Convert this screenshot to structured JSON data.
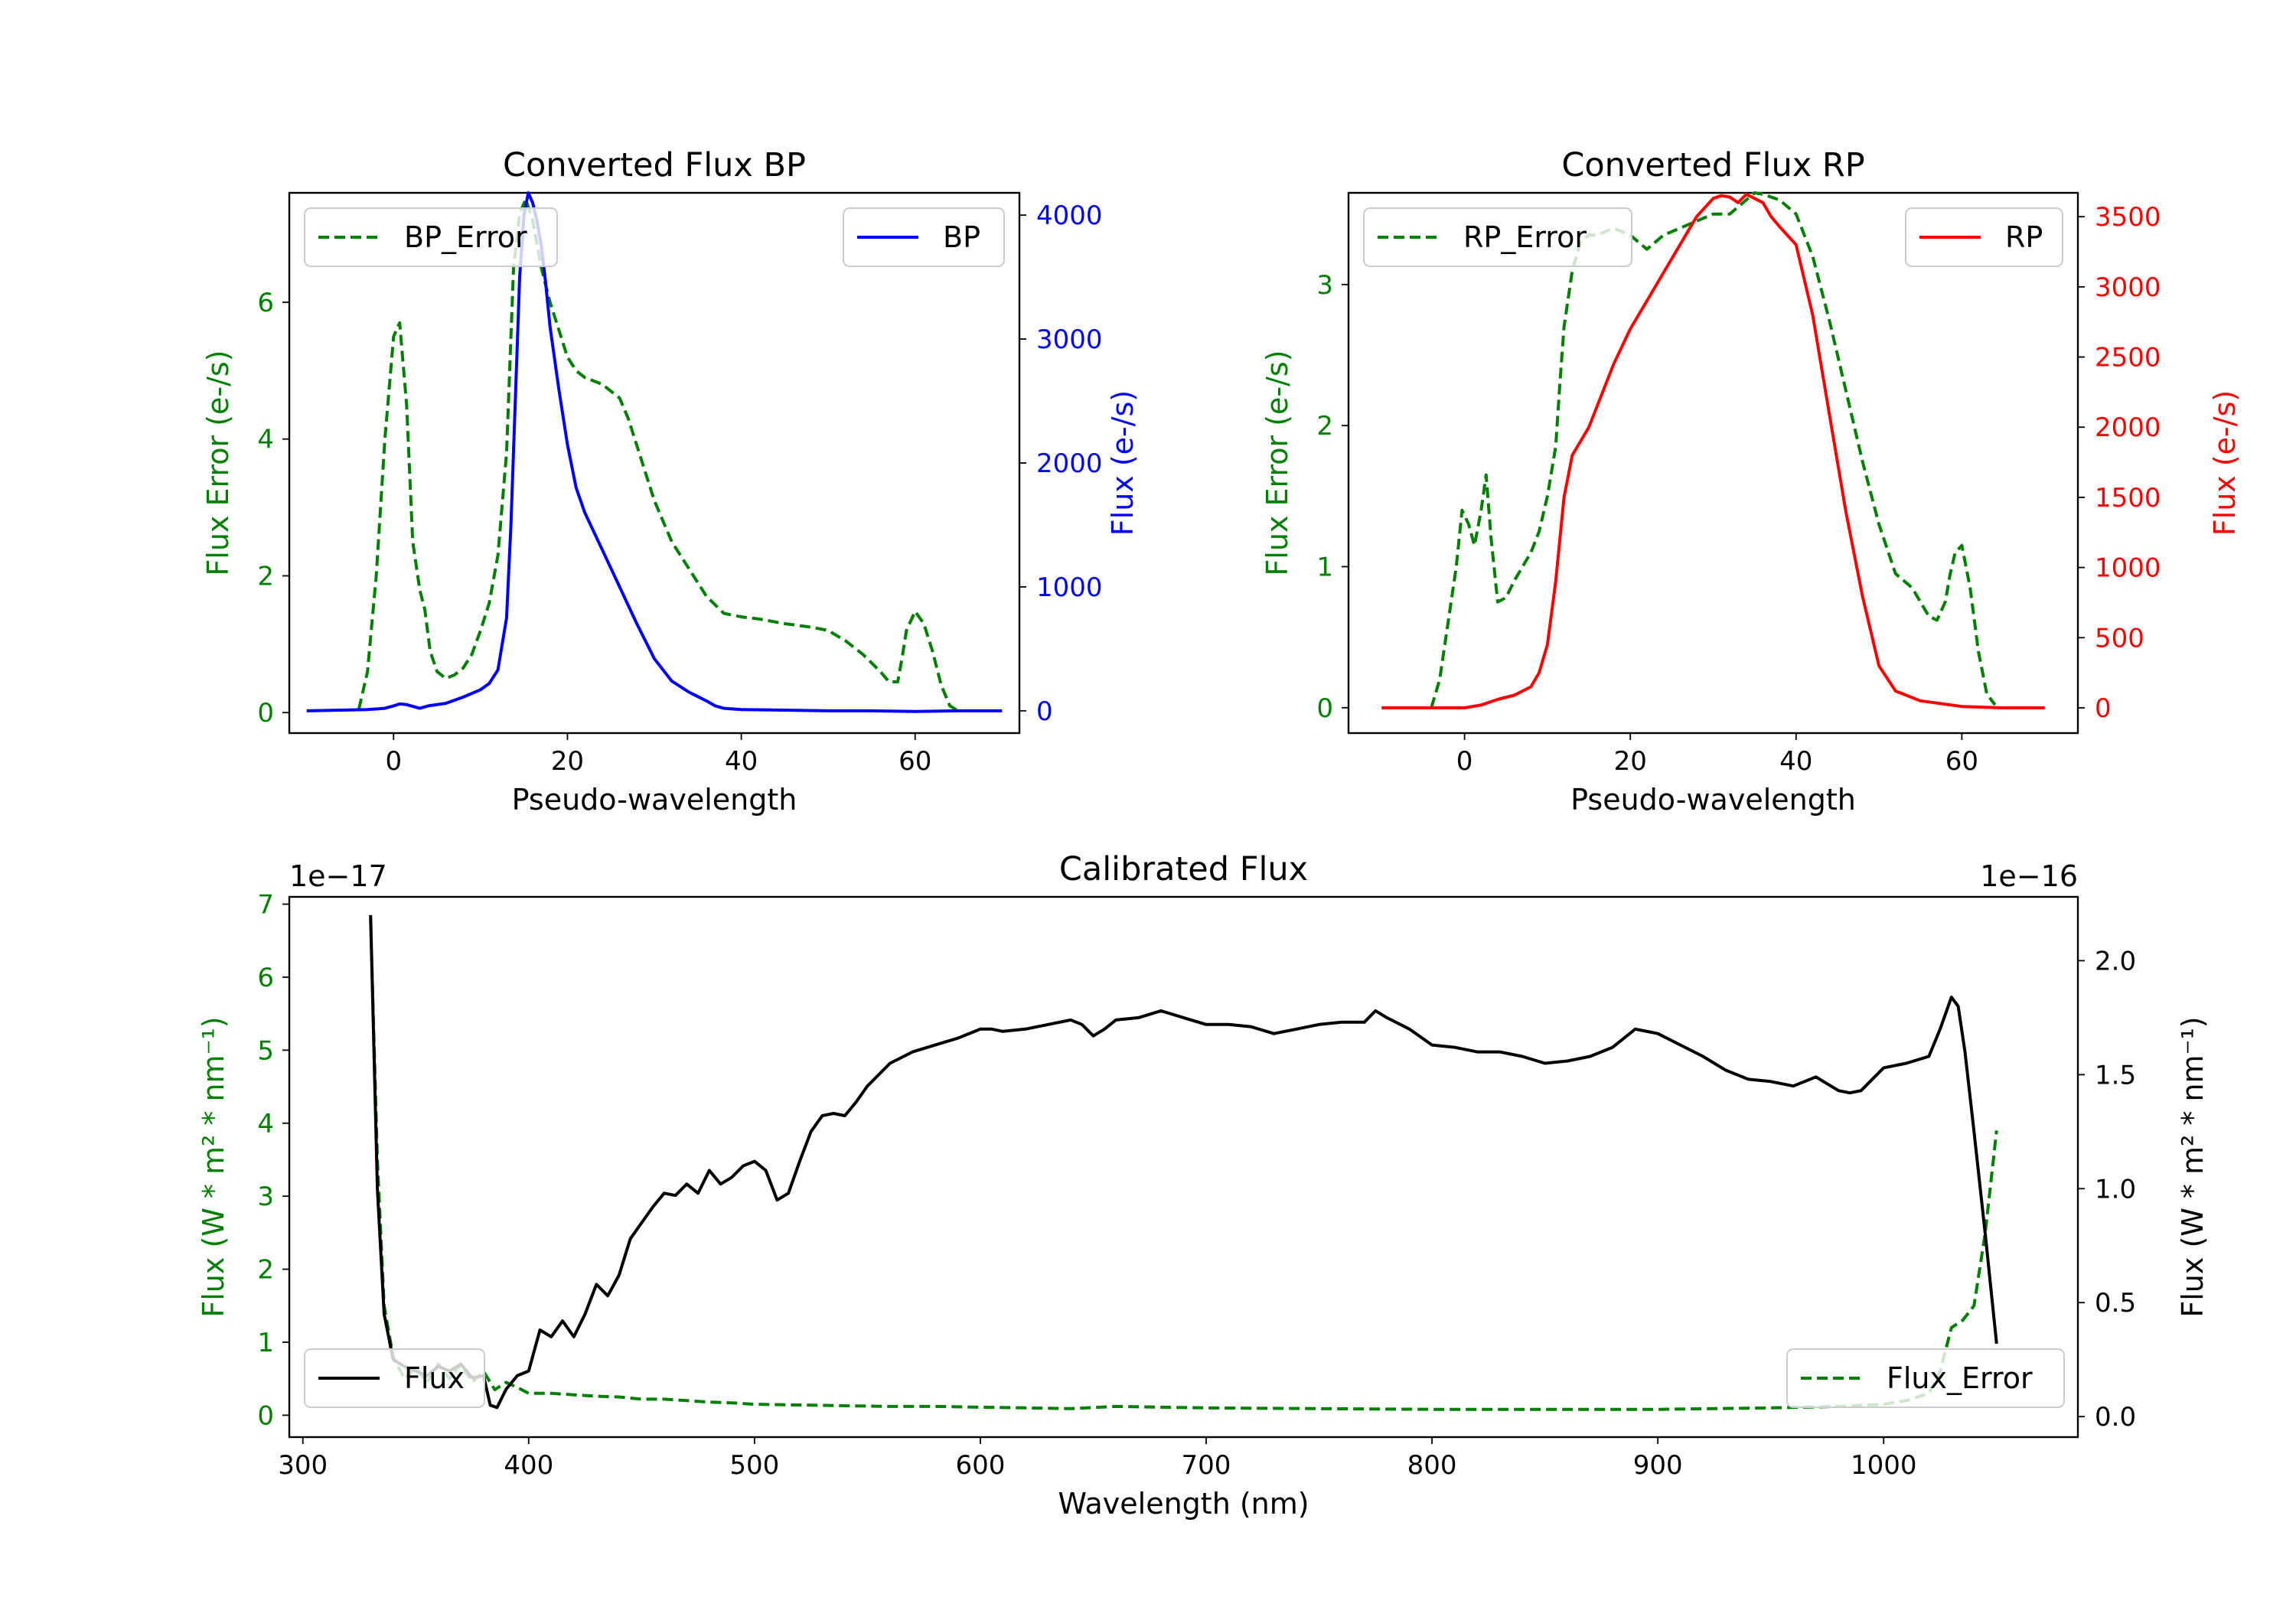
{
  "chart_data": [
    {
      "type": "line",
      "title": "Converted Flux BP",
      "xlabel": "Pseudo-wavelength",
      "ylabel_left": "Flux Error (e-/s)",
      "ylabel_right": "Flux (e-/s)",
      "xlim": [
        -12,
        72
      ],
      "ylim_left": [
        -0.3,
        7.6
      ],
      "ylim_right": [
        -180,
        4180
      ],
      "xticks": [
        "0",
        "20",
        "40",
        "60"
      ],
      "yticks_left": [
        "0",
        "2",
        "4",
        "6"
      ],
      "yticks_right": [
        "0",
        "1000",
        "2000",
        "3000",
        "4000"
      ],
      "legend": {
        "left": "BP_Error",
        "right": "BP"
      },
      "series": [
        {
          "name": "BP_Error",
          "axis": "left",
          "style": "dashed",
          "color": "#008000",
          "x": [
            -4,
            -3,
            -2,
            -1,
            0,
            0.7,
            1.5,
            2.2,
            3,
            3.6,
            4.2,
            5,
            6,
            7,
            8,
            9,
            10,
            11,
            12,
            13,
            13.8,
            14.5,
            15.2,
            16,
            17,
            18,
            19,
            20,
            21,
            22,
            24,
            26,
            27,
            28,
            30,
            32,
            34,
            36,
            38,
            40,
            42,
            45,
            48,
            50,
            52,
            54,
            56,
            57,
            58,
            58.5,
            59,
            60,
            61,
            62,
            63,
            64,
            65
          ],
          "y": [
            0.05,
            0.6,
            2.0,
            4.0,
            5.5,
            5.7,
            4.5,
            2.5,
            1.8,
            1.5,
            0.9,
            0.6,
            0.5,
            0.55,
            0.65,
            0.85,
            1.2,
            1.6,
            2.3,
            3.8,
            6.5,
            7.3,
            7.5,
            7.2,
            6.5,
            6.0,
            5.6,
            5.2,
            5.0,
            4.9,
            4.8,
            4.6,
            4.3,
            3.9,
            3.1,
            2.5,
            2.1,
            1.7,
            1.45,
            1.4,
            1.37,
            1.3,
            1.25,
            1.2,
            1.05,
            0.85,
            0.6,
            0.45,
            0.45,
            0.8,
            1.2,
            1.48,
            1.3,
            0.9,
            0.4,
            0.1,
            0.02
          ]
        },
        {
          "name": "BP",
          "axis": "right",
          "style": "solid",
          "color": "#0000ff",
          "x": [
            -10,
            -6,
            -3,
            -1,
            0,
            0.7,
            1.5,
            3,
            4,
            6,
            8,
            10,
            11,
            12,
            13,
            13.5,
            14,
            14.5,
            15,
            15.5,
            16,
            16.5,
            17,
            17.5,
            18,
            19,
            20,
            21,
            22,
            23,
            24,
            26,
            28,
            30,
            32,
            34,
            36,
            37,
            38,
            40,
            45,
            50,
            55,
            60,
            65,
            70
          ],
          "y": [
            0,
            5,
            10,
            20,
            40,
            55,
            50,
            20,
            40,
            60,
            110,
            170,
            220,
            330,
            750,
            1500,
            2500,
            3500,
            4000,
            4180,
            4100,
            3950,
            3750,
            3450,
            3100,
            2600,
            2150,
            1800,
            1600,
            1450,
            1300,
            1000,
            700,
            420,
            240,
            150,
            80,
            40,
            20,
            10,
            5,
            0,
            0,
            -5,
            0,
            0
          ]
        }
      ]
    },
    {
      "type": "line",
      "title": "Converted Flux RP",
      "xlabel": "Pseudo-wavelength",
      "ylabel_left": "Flux Error (e-/s)",
      "ylabel_right": "Flux (e-/s)",
      "xlim": [
        -14,
        74
      ],
      "ylim_left": [
        -0.18,
        3.65
      ],
      "ylim_right": [
        -180,
        3670
      ],
      "xticks": [
        "0",
        "20",
        "40",
        "60"
      ],
      "yticks_left": [
        "0",
        "1",
        "2",
        "3"
      ],
      "yticks_right": [
        "0",
        "500",
        "1000",
        "1500",
        "2000",
        "2500",
        "3000",
        "3500"
      ],
      "legend": {
        "left": "RP_Error",
        "right": "RP"
      },
      "series": [
        {
          "name": "RP_Error",
          "axis": "left",
          "style": "dashed",
          "color": "#008000",
          "x": [
            -4,
            -3,
            -2,
            -1,
            -0.3,
            0.5,
            1.2,
            2,
            2.6,
            3.2,
            4,
            5,
            6,
            7,
            8,
            9,
            10,
            11,
            11.5,
            12,
            13,
            14,
            15,
            16,
            18,
            20,
            22,
            24,
            26,
            28,
            30,
            32,
            34,
            35,
            36,
            38,
            40,
            42,
            44,
            46,
            48,
            50,
            52,
            54,
            56,
            57,
            58,
            58.6,
            59.2,
            60,
            61,
            62,
            63,
            64
          ],
          "y": [
            0,
            0.2,
            0.6,
            1.0,
            1.4,
            1.3,
            1.15,
            1.4,
            1.65,
            1.2,
            0.75,
            0.78,
            0.9,
            1.0,
            1.1,
            1.25,
            1.5,
            1.85,
            2.3,
            2.7,
            3.1,
            3.3,
            3.35,
            3.35,
            3.4,
            3.35,
            3.25,
            3.35,
            3.4,
            3.45,
            3.5,
            3.5,
            3.6,
            3.65,
            3.64,
            3.6,
            3.5,
            3.2,
            2.75,
            2.25,
            1.75,
            1.3,
            0.95,
            0.85,
            0.65,
            0.62,
            0.75,
            0.95,
            1.1,
            1.15,
            0.85,
            0.4,
            0.1,
            0.02
          ]
        },
        {
          "name": "RP",
          "axis": "right",
          "style": "solid",
          "color": "#ff0000",
          "x": [
            -10,
            -4,
            0,
            2,
            4,
            6,
            8,
            9,
            10,
            11,
            12,
            13,
            14,
            15,
            16,
            18,
            20,
            22,
            24,
            26,
            28,
            30,
            31,
            32,
            33,
            34,
            35,
            36,
            37,
            38,
            40,
            42,
            44,
            46,
            48,
            50,
            52,
            55,
            60,
            65,
            70
          ],
          "y": [
            0,
            0,
            0,
            20,
            60,
            90,
            150,
            250,
            450,
            900,
            1500,
            1800,
            1900,
            2000,
            2150,
            2450,
            2700,
            2900,
            3100,
            3300,
            3500,
            3630,
            3650,
            3640,
            3600,
            3660,
            3630,
            3600,
            3500,
            3430,
            3300,
            2800,
            2100,
            1400,
            800,
            300,
            120,
            50,
            10,
            0,
            0
          ]
        }
      ]
    },
    {
      "type": "line",
      "title": "Calibrated Flux",
      "xlabel": "Wavelength (nm)",
      "ylabel_left": "Flux (W * m² * nm⁻¹)",
      "ylabel_right": "Flux (W * m² * nm⁻¹)",
      "left_scale_label": "1e−17",
      "right_scale_label": "1e−16",
      "xlim": [
        294,
        1086
      ],
      "ylim_left": [
        -0.3,
        7.1
      ],
      "ylim_right": [
        -0.09,
        2.28
      ],
      "xticks": [
        "300",
        "400",
        "500",
        "600",
        "700",
        "800",
        "900",
        "1000"
      ],
      "yticks_left": [
        "0",
        "1",
        "2",
        "3",
        "4",
        "5",
        "6",
        "7"
      ],
      "yticks_right": [
        "0.0",
        "0.5",
        "1.0",
        "1.5",
        "2.0"
      ],
      "legend": {
        "left": "Flux",
        "right": "Flux_Error"
      },
      "series": [
        {
          "name": "Flux_Error",
          "axis": "left",
          "style": "dashed",
          "color": "#008000",
          "x": [
            330,
            333,
            336,
            340,
            345,
            350,
            355,
            360,
            365,
            370,
            375,
            380,
            385,
            390,
            395,
            400,
            410,
            420,
            430,
            440,
            450,
            460,
            470,
            480,
            490,
            500,
            520,
            540,
            560,
            580,
            600,
            620,
            640,
            660,
            680,
            700,
            750,
            800,
            850,
            900,
            950,
            980,
            1000,
            1010,
            1020,
            1025,
            1030,
            1035,
            1040,
            1045,
            1050
          ],
          "y": [
            6.8,
            3.5,
            1.5,
            0.8,
            0.5,
            0.65,
            0.45,
            0.7,
            0.5,
            0.7,
            0.45,
            0.6,
            0.35,
            0.45,
            0.38,
            0.3,
            0.3,
            0.28,
            0.26,
            0.25,
            0.22,
            0.22,
            0.2,
            0.18,
            0.17,
            0.15,
            0.14,
            0.13,
            0.12,
            0.12,
            0.11,
            0.1,
            0.09,
            0.12,
            0.11,
            0.1,
            0.09,
            0.08,
            0.08,
            0.08,
            0.1,
            0.12,
            0.15,
            0.2,
            0.3,
            0.6,
            1.2,
            1.3,
            1.5,
            2.5,
            3.9
          ]
        },
        {
          "name": "Flux",
          "axis": "right",
          "style": "solid",
          "color": "#000000",
          "x": [
            330,
            333,
            336,
            340,
            345,
            350,
            355,
            360,
            365,
            370,
            375,
            380,
            383,
            386,
            390,
            395,
            400,
            405,
            410,
            415,
            420,
            425,
            430,
            435,
            440,
            445,
            450,
            455,
            460,
            465,
            470,
            475,
            480,
            485,
            490,
            495,
            500,
            505,
            510,
            515,
            520,
            525,
            530,
            535,
            540,
            545,
            550,
            555,
            560,
            570,
            580,
            590,
            600,
            605,
            610,
            620,
            630,
            640,
            645,
            650,
            655,
            660,
            670,
            680,
            690,
            700,
            710,
            720,
            730,
            740,
            750,
            760,
            770,
            775,
            780,
            790,
            800,
            810,
            820,
            830,
            840,
            850,
            860,
            870,
            880,
            890,
            900,
            910,
            920,
            930,
            940,
            950,
            960,
            970,
            980,
            985,
            990,
            1000,
            1010,
            1020,
            1025,
            1030,
            1033,
            1036,
            1040,
            1045,
            1050
          ],
          "y": [
            2.2,
            1.0,
            0.45,
            0.25,
            0.22,
            0.2,
            0.18,
            0.22,
            0.2,
            0.23,
            0.17,
            0.18,
            0.05,
            0.04,
            0.12,
            0.18,
            0.2,
            0.38,
            0.35,
            0.42,
            0.35,
            0.45,
            0.58,
            0.53,
            0.62,
            0.78,
            0.85,
            0.92,
            0.98,
            0.97,
            1.02,
            0.98,
            1.08,
            1.02,
            1.05,
            1.1,
            1.12,
            1.08,
            0.95,
            0.98,
            1.12,
            1.25,
            1.32,
            1.33,
            1.32,
            1.38,
            1.45,
            1.5,
            1.55,
            1.6,
            1.63,
            1.66,
            1.7,
            1.7,
            1.69,
            1.7,
            1.72,
            1.74,
            1.72,
            1.67,
            1.7,
            1.74,
            1.75,
            1.78,
            1.75,
            1.72,
            1.72,
            1.71,
            1.68,
            1.7,
            1.72,
            1.73,
            1.73,
            1.78,
            1.75,
            1.7,
            1.63,
            1.62,
            1.6,
            1.6,
            1.58,
            1.55,
            1.56,
            1.58,
            1.62,
            1.7,
            1.68,
            1.63,
            1.58,
            1.52,
            1.48,
            1.47,
            1.45,
            1.49,
            1.43,
            1.42,
            1.43,
            1.53,
            1.55,
            1.58,
            1.7,
            1.84,
            1.8,
            1.6,
            1.25,
            0.8,
            0.32
          ]
        }
      ]
    }
  ]
}
